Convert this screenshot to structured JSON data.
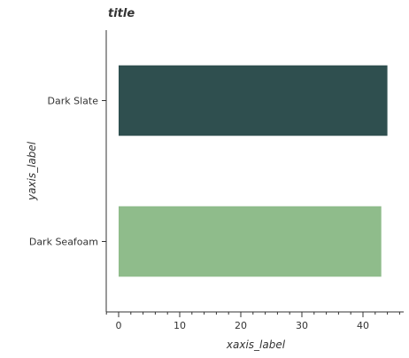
{
  "chart_data": {
    "type": "bar",
    "orientation": "horizontal",
    "title": "title",
    "xlabel": "xaxis_label",
    "ylabel": "yaxis_label",
    "categories": [
      "Dark Seafoam",
      "Dark Slate"
    ],
    "values": [
      43,
      44
    ],
    "xlim": [
      0,
      45
    ],
    "xticks": [
      "0",
      "10",
      "20",
      "30",
      "40"
    ],
    "colors": [
      "#8fbc8b",
      "#2f4f4f"
    ],
    "grid": false,
    "legend": "none"
  }
}
